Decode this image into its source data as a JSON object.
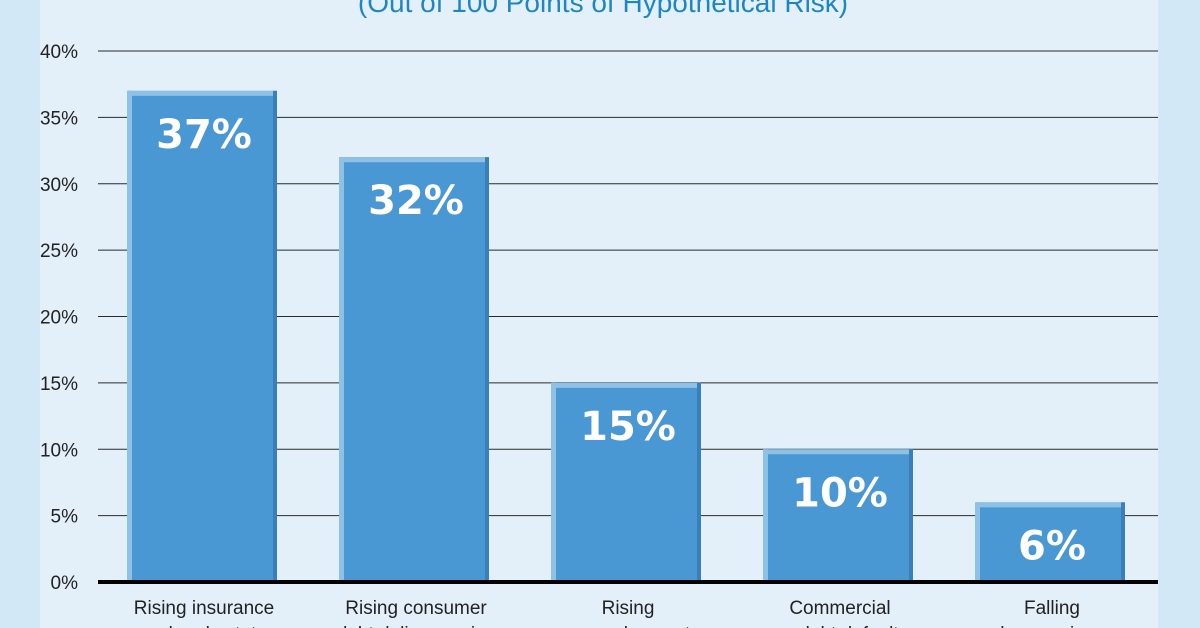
{
  "chart_data": {
    "type": "bar",
    "subtitle": "(Out of 100 Points of Hypothetical Risk)",
    "categories": [
      [
        "Rising insurance",
        "and real estate"
      ],
      [
        "Rising consumer",
        "debt delinquencies"
      ],
      [
        "Rising",
        "unemployment"
      ],
      [
        "Commercial",
        "re. debt defaults"
      ],
      [
        "Falling",
        "home prices"
      ]
    ],
    "values": [
      37,
      32,
      15,
      10,
      6
    ],
    "value_labels": [
      "37%",
      "32%",
      "15%",
      "10%",
      "6%"
    ],
    "y_ticks": [
      "0%",
      "5%",
      "10%",
      "15%",
      "20%",
      "25%",
      "30%",
      "35%",
      "40%"
    ],
    "ylim": [
      0,
      40
    ],
    "grid": true,
    "colors": {
      "background": "#d3e8f6",
      "plot_background": "#e3f0f9",
      "bar": "#4a98d3",
      "bar_highlight": "#8fc0e6",
      "bar_shadow": "#3a7fb8",
      "grid": "#2a2a2a",
      "baseline": "#000000",
      "subtitle": "#1f86c4"
    }
  }
}
